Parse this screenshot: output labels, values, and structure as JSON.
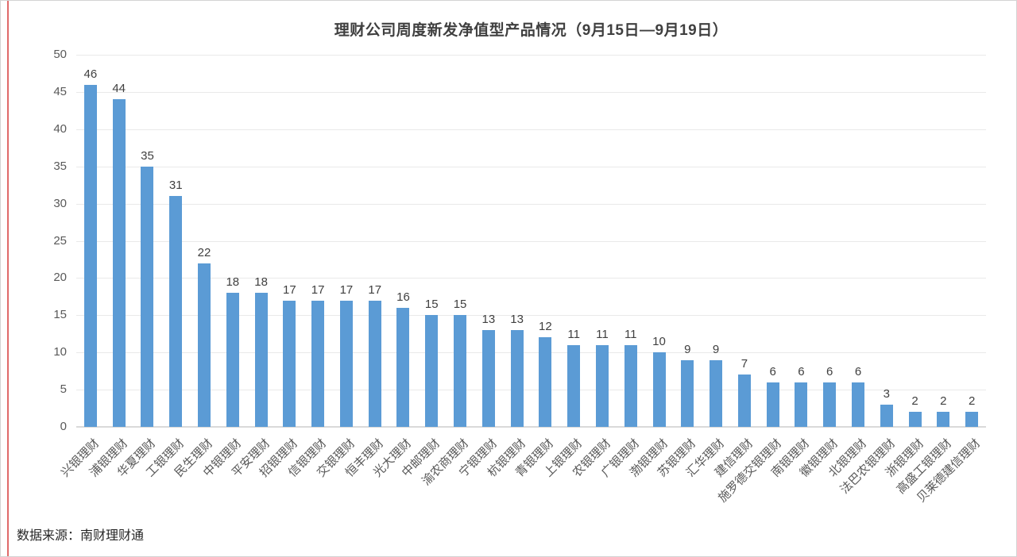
{
  "page": {
    "source_label": "数据来源：南财理财通"
  },
  "colors": {
    "bar": "#5B9BD5",
    "gridline": "#e9e9e9",
    "axis_line": "#d9d9d9",
    "title_text": "#3f3f3f",
    "tick_text": "#595959",
    "value_text": "#404040",
    "left_accent_line": "#e06a6a"
  },
  "chart_data": {
    "type": "bar",
    "title": "理财公司周度新发净值型产品情况（9月15日—9月19日）",
    "categories": [
      "兴银理财",
      "浦银理财",
      "华夏理财",
      "工银理财",
      "民生理财",
      "中银理财",
      "平安理财",
      "招银理财",
      "信银理财",
      "交银理财",
      "恒丰理财",
      "光大理财",
      "中邮理财",
      "渝农商理财",
      "宁银理财",
      "杭银理财",
      "青银理财",
      "上银理财",
      "农银理财",
      "广银理财",
      "渤银理财",
      "苏银理财",
      "汇华理财",
      "建信理财",
      "施罗德交银理财",
      "南银理财",
      "徽银理财",
      "北银理财",
      "法巴农银理财",
      "浙银理财",
      "高盛工银理财",
      "贝莱德建信理财"
    ],
    "values": [
      46,
      44,
      35,
      31,
      22,
      18,
      18,
      17,
      17,
      17,
      17,
      16,
      15,
      15,
      13,
      13,
      12,
      11,
      11,
      11,
      10,
      9,
      9,
      7,
      6,
      6,
      6,
      6,
      3,
      2,
      2,
      2
    ],
    "xlabel": "",
    "ylabel": "",
    "ylim": [
      0,
      50
    ],
    "yticks": [
      0,
      5,
      10,
      15,
      20,
      25,
      30,
      35,
      40,
      45,
      50
    ],
    "grid": true,
    "legend": "none",
    "value_labels": true,
    "x_tick_rotation_deg": 45
  }
}
